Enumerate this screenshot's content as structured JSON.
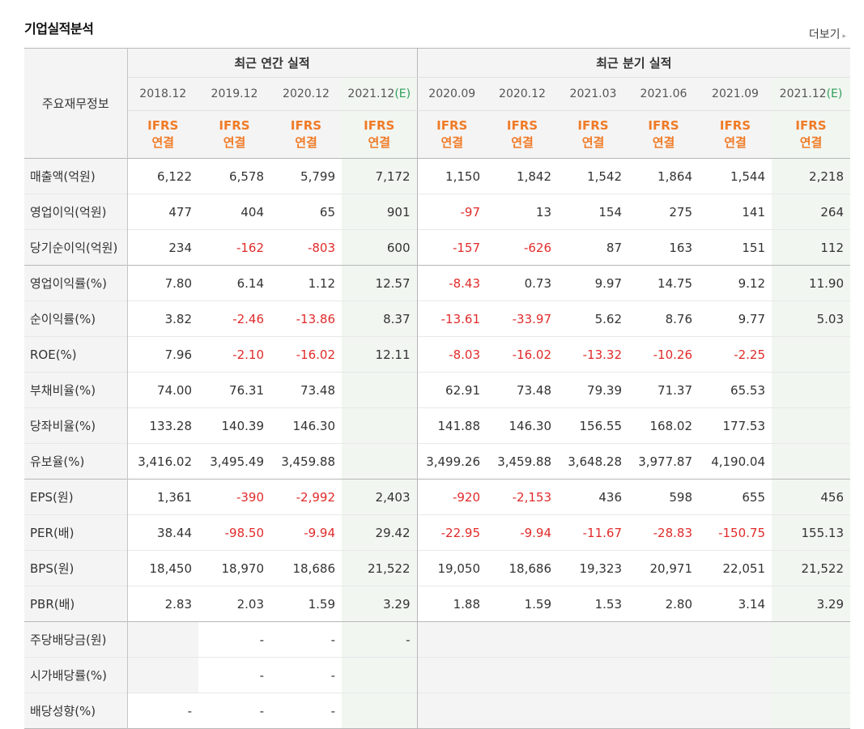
{
  "title": "기업실적분석",
  "more_label": "더보기",
  "corner_label": "주요재무정보",
  "groups": {
    "annual": "최근 연간 실적",
    "quarter": "최근 분기 실적"
  },
  "periods": [
    {
      "date": "2018.12",
      "est": ""
    },
    {
      "date": "2019.12",
      "est": ""
    },
    {
      "date": "2020.12",
      "est": ""
    },
    {
      "date": "2021.12",
      "est": "(E)"
    },
    {
      "date": "2020.09",
      "est": ""
    },
    {
      "date": "2020.12",
      "est": ""
    },
    {
      "date": "2021.03",
      "est": ""
    },
    {
      "date": "2021.06",
      "est": ""
    },
    {
      "date": "2021.09",
      "est": ""
    },
    {
      "date": "2021.12",
      "est": "(E)"
    }
  ],
  "ifrs_line1": "IFRS",
  "ifrs_line2": "연결",
  "rows": [
    {
      "label": "매출액(억원)",
      "values": [
        "6,122",
        "6,578",
        "5,799",
        "7,172",
        "1,150",
        "1,842",
        "1,542",
        "1,864",
        "1,544",
        "2,218"
      ]
    },
    {
      "label": "영업이익(억원)",
      "values": [
        "477",
        "404",
        "65",
        "901",
        "-97",
        "13",
        "154",
        "275",
        "141",
        "264"
      ]
    },
    {
      "label": "당기순이익(억원)",
      "values": [
        "234",
        "-162",
        "-803",
        "600",
        "-157",
        "-626",
        "87",
        "163",
        "151",
        "112"
      ]
    },
    {
      "label": "영업이익률(%)",
      "values": [
        "7.80",
        "6.14",
        "1.12",
        "12.57",
        "-8.43",
        "0.73",
        "9.97",
        "14.75",
        "9.12",
        "11.90"
      ]
    },
    {
      "label": "순이익률(%)",
      "values": [
        "3.82",
        "-2.46",
        "-13.86",
        "8.37",
        "-13.61",
        "-33.97",
        "5.62",
        "8.76",
        "9.77",
        "5.03"
      ]
    },
    {
      "label": "ROE(%)",
      "values": [
        "7.96",
        "-2.10",
        "-16.02",
        "12.11",
        "-8.03",
        "-16.02",
        "-13.32",
        "-10.26",
        "-2.25",
        ""
      ]
    },
    {
      "label": "부채비율(%)",
      "values": [
        "74.00",
        "76.31",
        "73.48",
        "",
        "62.91",
        "73.48",
        "79.39",
        "71.37",
        "65.53",
        ""
      ]
    },
    {
      "label": "당좌비율(%)",
      "values": [
        "133.28",
        "140.39",
        "146.30",
        "",
        "141.88",
        "146.30",
        "156.55",
        "168.02",
        "177.53",
        ""
      ]
    },
    {
      "label": "유보율(%)",
      "values": [
        "3,416.02",
        "3,495.49",
        "3,459.88",
        "",
        "3,499.26",
        "3,459.88",
        "3,648.28",
        "3,977.87",
        "4,190.04",
        ""
      ]
    },
    {
      "label": "EPS(원)",
      "values": [
        "1,361",
        "-390",
        "-2,992",
        "2,403",
        "-920",
        "-2,153",
        "436",
        "598",
        "655",
        "456"
      ]
    },
    {
      "label": "PER(배)",
      "values": [
        "38.44",
        "-98.50",
        "-9.94",
        "29.42",
        "-22.95",
        "-9.94",
        "-11.67",
        "-28.83",
        "-150.75",
        "155.13"
      ]
    },
    {
      "label": "BPS(원)",
      "values": [
        "18,450",
        "18,970",
        "18,686",
        "21,522",
        "19,050",
        "18,686",
        "19,323",
        "20,971",
        "22,051",
        "21,522"
      ]
    },
    {
      "label": "PBR(배)",
      "values": [
        "2.83",
        "2.03",
        "1.59",
        "3.29",
        "1.88",
        "1.59",
        "1.53",
        "2.80",
        "3.14",
        "3.29"
      ]
    },
    {
      "label": "주당배당금(원)",
      "values": [
        "",
        "-",
        "-",
        "-",
        "",
        "",
        "",
        "",
        "",
        ""
      ]
    },
    {
      "label": "시가배당률(%)",
      "values": [
        "",
        "-",
        "-",
        "",
        "",
        "",
        "",
        "",
        "",
        ""
      ]
    },
    {
      "label": "배당성향(%)",
      "values": [
        "-",
        "-",
        "-",
        "",
        "",
        "",
        "",
        "",
        "",
        ""
      ]
    }
  ],
  "colors": {
    "negative": "#e12b2b",
    "ifrs": "#f07b27",
    "estimate_tag": "#2e9e5a"
  }
}
